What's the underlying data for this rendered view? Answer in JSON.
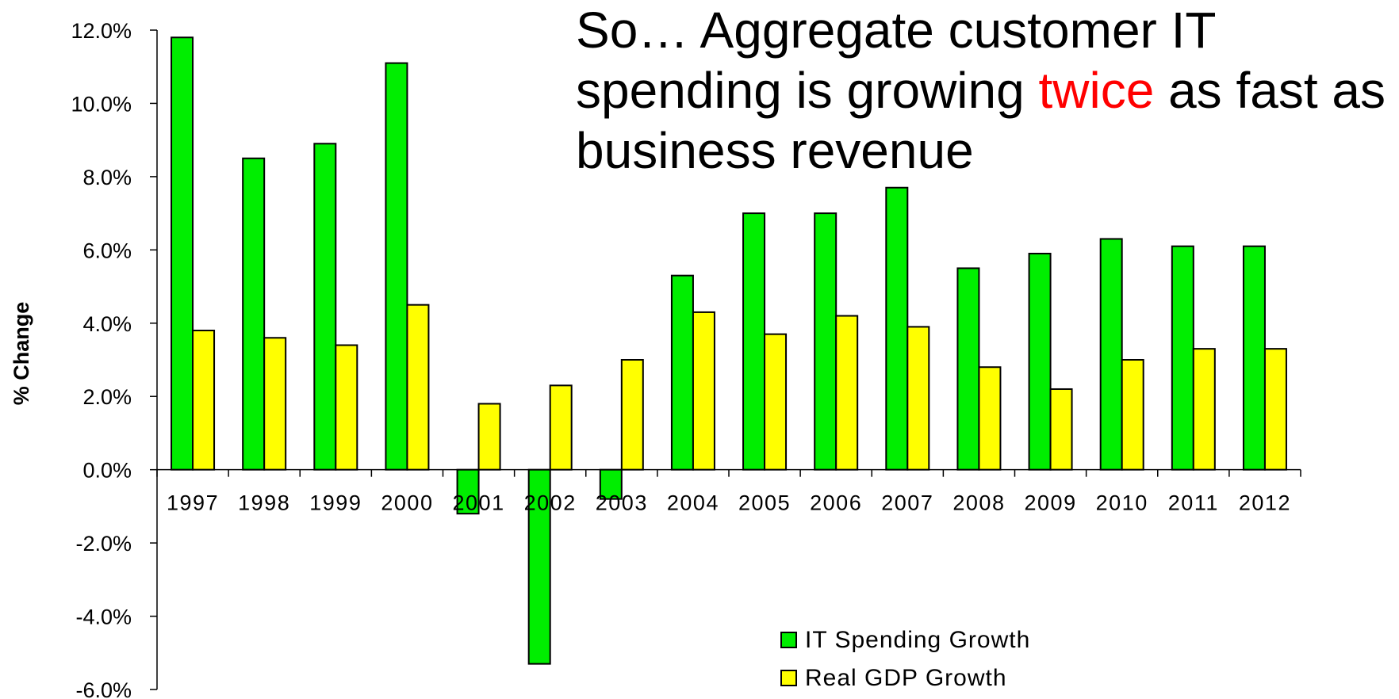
{
  "headline": {
    "before": "So…  Aggregate customer IT spending is growing ",
    "highlight": "twice",
    "after": " as fast as business revenue",
    "highlight_color": "#ff0000"
  },
  "chart_data": {
    "type": "bar",
    "title": "",
    "xlabel": "",
    "ylabel": "% Change",
    "categories": [
      "1997",
      "1998",
      "1999",
      "2000",
      "2001",
      "2002",
      "2003",
      "2004",
      "2005",
      "2006",
      "2007",
      "2008",
      "2009",
      "2010",
      "2011",
      "2012"
    ],
    "series": [
      {
        "name": "IT Spending Growth",
        "color": "#00ee00",
        "values": [
          11.8,
          8.5,
          8.9,
          11.1,
          -1.2,
          -5.3,
          -0.8,
          5.3,
          7.0,
          7.0,
          7.7,
          5.5,
          5.9,
          6.3,
          6.1,
          6.1
        ]
      },
      {
        "name": "Real GDP Growth",
        "color": "#ffff00",
        "values": [
          3.8,
          3.6,
          3.4,
          4.5,
          1.8,
          2.3,
          3.0,
          4.3,
          3.7,
          4.2,
          3.9,
          2.8,
          2.2,
          3.0,
          3.3,
          3.3
        ]
      }
    ],
    "ylim": [
      -6,
      12
    ],
    "yticks": [
      12,
      10,
      8,
      6,
      4,
      2,
      0,
      -2,
      -4,
      -6
    ],
    "ytick_labels": [
      "12.0%",
      "10.0%",
      "8.0%",
      "6.0%",
      "4.0%",
      "2.0%",
      "0.0%",
      "-2.0%",
      "-4.0%",
      "-6.0%"
    ],
    "grid": false,
    "legend_position": "bottom-center"
  }
}
